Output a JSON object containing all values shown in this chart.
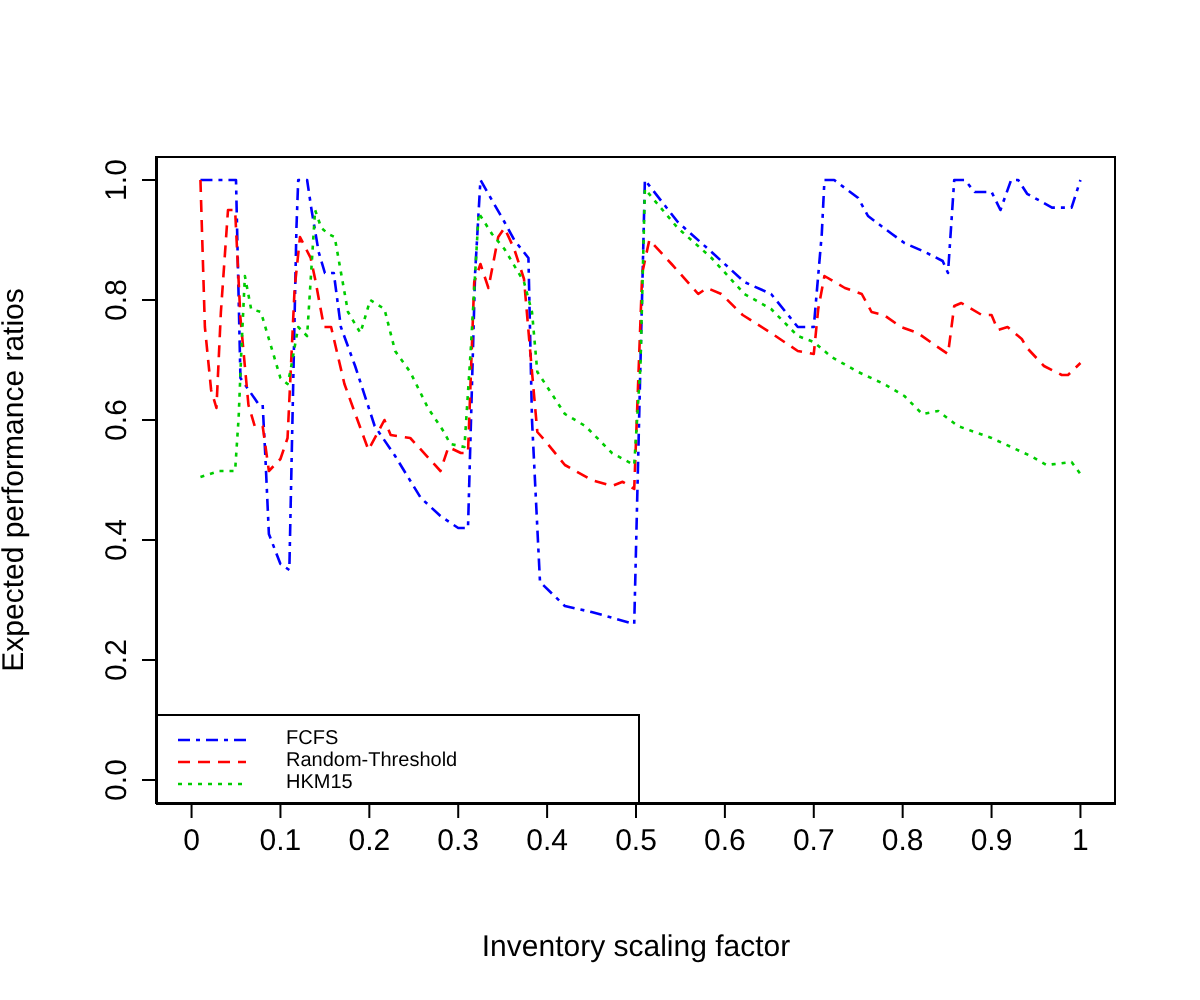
{
  "chart_data": {
    "type": "line",
    "xlabel": "Inventory scaling factor",
    "ylabel": "Expected performance ratios",
    "xlim": [
      -0.04,
      1.04
    ],
    "ylim": [
      -0.04,
      1.04
    ],
    "xticks": [
      0,
      0.1,
      0.2,
      0.3,
      0.4,
      0.5,
      0.6,
      0.7,
      0.8,
      0.9,
      1
    ],
    "yticks": [
      {
        "value": 0,
        "label": "0.0"
      },
      {
        "value": 0.2,
        "label": "0.2"
      },
      {
        "value": 0.4,
        "label": "0.4"
      },
      {
        "value": 0.6,
        "label": "0.6"
      },
      {
        "value": 0.8,
        "label": "0.8"
      },
      {
        "value": 1,
        "label": "1.0"
      }
    ],
    "legend": "bottom left",
    "marker": "none",
    "series": [
      {
        "name": "FCFS",
        "color": "#0000ff",
        "line_style": "dashdot",
        "x": [
          0.01,
          0.05,
          0.055,
          0.076,
          0.08,
          0.083,
          0.087,
          0.1,
          0.11,
          0.118,
          0.12,
          0.13,
          0.135,
          0.143,
          0.15,
          0.16,
          0.168,
          0.184,
          0.206,
          0.229,
          0.258,
          0.28,
          0.3,
          0.311,
          0.319,
          0.325,
          0.352,
          0.363,
          0.379,
          0.383,
          0.392,
          0.42,
          0.45,
          0.498,
          0.503,
          0.51,
          0.547,
          0.585,
          0.622,
          0.652,
          0.682,
          0.7,
          0.709,
          0.712,
          0.723,
          0.75,
          0.761,
          0.788,
          0.802,
          0.825,
          0.845,
          0.851,
          0.858,
          0.87,
          0.881,
          0.9,
          0.91,
          0.922,
          0.93,
          0.94,
          0.956,
          0.968,
          0.99,
          1.0
        ],
        "values": [
          1.0,
          1.0,
          0.67,
          0.625,
          0.625,
          0.54,
          0.41,
          0.36,
          0.35,
          0.92,
          1.0,
          1.0,
          0.95,
          0.88,
          0.845,
          0.845,
          0.755,
          0.69,
          0.59,
          0.54,
          0.47,
          0.44,
          0.42,
          0.42,
          0.845,
          1.0,
          0.93,
          0.9,
          0.87,
          0.6,
          0.33,
          0.29,
          0.28,
          0.26,
          0.57,
          1.0,
          0.93,
          0.88,
          0.83,
          0.81,
          0.755,
          0.755,
          0.91,
          1.0,
          1.0,
          0.97,
          0.94,
          0.91,
          0.895,
          0.88,
          0.865,
          0.845,
          1.0,
          1.0,
          0.98,
          0.98,
          0.95,
          1.0,
          1.0,
          0.977,
          0.964,
          0.954,
          0.954,
          1.0
        ]
      },
      {
        "name": "Random-Threshold",
        "color": "#ff0000",
        "line_style": "dashed",
        "x": [
          0.01,
          0.015,
          0.022,
          0.028,
          0.033,
          0.041,
          0.049,
          0.055,
          0.064,
          0.071,
          0.08,
          0.087,
          0.1,
          0.108,
          0.116,
          0.122,
          0.134,
          0.139,
          0.149,
          0.157,
          0.172,
          0.183,
          0.199,
          0.217,
          0.224,
          0.246,
          0.28,
          0.289,
          0.303,
          0.311,
          0.318,
          0.325,
          0.334,
          0.345,
          0.352,
          0.363,
          0.374,
          0.383,
          0.389,
          0.398,
          0.42,
          0.45,
          0.473,
          0.485,
          0.498,
          0.507,
          0.515,
          0.54,
          0.57,
          0.58,
          0.596,
          0.62,
          0.652,
          0.682,
          0.7,
          0.705,
          0.712,
          0.735,
          0.754,
          0.765,
          0.779,
          0.798,
          0.817,
          0.836,
          0.851,
          0.858,
          0.866,
          0.889,
          0.9,
          0.907,
          0.918,
          0.934,
          0.94,
          0.959,
          0.979,
          0.986,
          1.0
        ],
        "values": [
          1.0,
          0.755,
          0.65,
          0.62,
          0.78,
          0.95,
          0.95,
          0.77,
          0.625,
          0.59,
          0.59,
          0.515,
          0.535,
          0.57,
          0.82,
          0.905,
          0.87,
          0.835,
          0.755,
          0.755,
          0.66,
          0.615,
          0.55,
          0.6,
          0.575,
          0.57,
          0.515,
          0.555,
          0.545,
          0.545,
          0.83,
          0.86,
          0.82,
          0.905,
          0.92,
          0.885,
          0.835,
          0.68,
          0.58,
          0.565,
          0.525,
          0.5,
          0.49,
          0.497,
          0.485,
          0.845,
          0.9,
          0.86,
          0.81,
          0.82,
          0.81,
          0.775,
          0.745,
          0.715,
          0.71,
          0.785,
          0.84,
          0.82,
          0.81,
          0.78,
          0.775,
          0.755,
          0.745,
          0.725,
          0.71,
          0.79,
          0.795,
          0.775,
          0.775,
          0.75,
          0.755,
          0.735,
          0.72,
          0.69,
          0.675,
          0.675,
          0.695
        ]
      },
      {
        "name": "HKM15",
        "color": "#00cc00",
        "line_style": "dotted",
        "x": [
          0.01,
          0.031,
          0.049,
          0.053,
          0.056,
          0.06,
          0.067,
          0.078,
          0.087,
          0.1,
          0.108,
          0.111,
          0.12,
          0.13,
          0.139,
          0.146,
          0.154,
          0.161,
          0.176,
          0.19,
          0.201,
          0.217,
          0.229,
          0.246,
          0.266,
          0.284,
          0.291,
          0.307,
          0.314,
          0.323,
          0.338,
          0.352,
          0.374,
          0.383,
          0.389,
          0.398,
          0.42,
          0.443,
          0.473,
          0.498,
          0.505,
          0.51,
          0.547,
          0.585,
          0.622,
          0.652,
          0.682,
          0.7,
          0.72,
          0.75,
          0.779,
          0.802,
          0.822,
          0.84,
          0.862,
          0.9,
          0.922,
          0.944,
          0.962,
          0.99,
          1.0
        ],
        "values": [
          0.505,
          0.515,
          0.515,
          0.605,
          0.715,
          0.84,
          0.785,
          0.78,
          0.735,
          0.67,
          0.66,
          0.68,
          0.755,
          0.74,
          0.95,
          0.92,
          0.91,
          0.905,
          0.78,
          0.745,
          0.8,
          0.785,
          0.715,
          0.68,
          0.62,
          0.58,
          0.56,
          0.555,
          0.715,
          0.945,
          0.91,
          0.885,
          0.83,
          0.78,
          0.68,
          0.66,
          0.61,
          0.59,
          0.545,
          0.525,
          0.69,
          0.985,
          0.92,
          0.87,
          0.81,
          0.785,
          0.74,
          0.73,
          0.705,
          0.68,
          0.66,
          0.64,
          0.61,
          0.615,
          0.59,
          0.57,
          0.555,
          0.54,
          0.525,
          0.53,
          0.51
        ]
      }
    ]
  }
}
